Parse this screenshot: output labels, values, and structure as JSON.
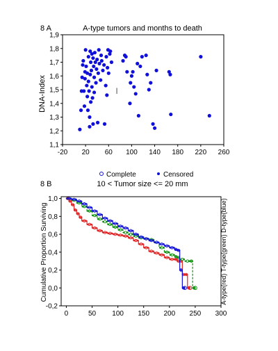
{
  "chart_data": [
    {
      "type": "scatter",
      "panel_label": "8 A",
      "title": "A-type tumors and months to death",
      "xlabel": "",
      "ylabel": "DNA-Index",
      "xlim": [
        -20,
        260
      ],
      "ylim": [
        1.1,
        1.9
      ],
      "x_ticks": [
        -20,
        20,
        60,
        100,
        140,
        180,
        220,
        260
      ],
      "y_ticks": [
        "1,1",
        "1,2",
        "1,3",
        "1,4",
        "1,5",
        "1,6",
        "1,7",
        "1,8",
        "1,9"
      ],
      "grid": false,
      "point_color": "#1010d8",
      "points": [
        [
          10,
          1.21
        ],
        [
          12,
          1.35
        ],
        [
          13,
          1.49
        ],
        [
          14,
          1.59
        ],
        [
          15,
          1.68
        ],
        [
          16,
          1.71
        ],
        [
          17,
          1.49
        ],
        [
          18,
          1.38
        ],
        [
          19,
          1.58
        ],
        [
          19,
          1.63
        ],
        [
          20,
          1.79
        ],
        [
          21,
          1.67
        ],
        [
          22,
          1.53
        ],
        [
          23,
          1.45
        ],
        [
          23,
          1.62
        ],
        [
          24,
          1.35
        ],
        [
          25,
          1.74
        ],
        [
          25,
          1.56
        ],
        [
          26,
          1.49
        ],
        [
          27,
          1.23
        ],
        [
          27,
          1.3
        ],
        [
          28,
          1.78
        ],
        [
          28,
          1.61
        ],
        [
          29,
          1.7
        ],
        [
          29,
          1.41
        ],
        [
          30,
          1.64
        ],
        [
          31,
          1.76
        ],
        [
          31,
          1.52
        ],
        [
          32,
          1.44
        ],
        [
          33,
          1.25
        ],
        [
          33,
          1.73
        ],
        [
          34,
          1.67
        ],
        [
          35,
          1.59
        ],
        [
          35,
          1.48
        ],
        [
          36,
          1.77
        ],
        [
          37,
          1.7
        ],
        [
          38,
          1.55
        ],
        [
          39,
          1.65
        ],
        [
          40,
          1.72
        ],
        [
          41,
          1.26
        ],
        [
          42,
          1.62
        ],
        [
          43,
          1.79
        ],
        [
          44,
          1.69
        ],
        [
          46,
          1.57
        ],
        [
          47,
          1.75
        ],
        [
          48,
          1.71
        ],
        [
          50,
          1.64
        ],
        [
          52,
          1.68
        ],
        [
          53,
          1.25
        ],
        [
          55,
          1.53
        ],
        [
          56,
          1.74
        ],
        [
          57,
          1.46
        ],
        [
          58,
          1.66
        ],
        [
          59,
          1.79
        ],
        [
          60,
          1.62
        ],
        [
          62,
          1.76
        ],
        [
          63,
          1.78
        ],
        [
          65,
          1.7
        ],
        [
          75,
          1.47
        ],
        [
          85,
          1.71
        ],
        [
          88,
          1.75
        ],
        [
          90,
          1.74
        ],
        [
          92,
          1.63
        ],
        [
          97,
          1.4
        ],
        [
          98,
          1.55
        ],
        [
          100,
          1.6
        ],
        [
          102,
          1.63
        ],
        [
          104,
          1.52
        ],
        [
          107,
          1.47
        ],
        [
          110,
          1.69
        ],
        [
          112,
          1.31
        ],
        [
          115,
          1.67
        ],
        [
          118,
          1.74
        ],
        [
          125,
          1.75
        ],
        [
          127,
          1.61
        ],
        [
          130,
          1.5
        ],
        [
          133,
          1.55
        ],
        [
          137,
          1.25
        ],
        [
          140,
          1.22
        ],
        [
          143,
          1.64
        ],
        [
          165,
          1.63
        ],
        [
          167,
          1.61
        ],
        [
          168,
          1.32
        ],
        [
          220,
          1.74
        ],
        [
          235,
          1.31
        ]
      ],
      "annotation": {
        "x": 75,
        "y": 1.47,
        "text": "|"
      }
    },
    {
      "type": "line",
      "panel_label": "8 B",
      "title": "10 < Tumor size <= 20 mm",
      "legend": {
        "position": "top",
        "entries": [
          "Complete",
          "Censored"
        ]
      },
      "xlabel": "",
      "ylabel": "Cumulative Proportion Surviving",
      "right_label": "A-type(red) T-type(green) D-type(blue)",
      "xlim": [
        -10,
        300
      ],
      "ylim": [
        -0.2,
        1.02
      ],
      "x_ticks": [
        0,
        50,
        100,
        150,
        200,
        250,
        300
      ],
      "y_ticks": [
        "-0,2",
        "0,0",
        "0,2",
        "0,4",
        "0,6",
        "0,8",
        "1,0"
      ],
      "grid": false,
      "series": [
        {
          "color": "#e02020",
          "x": [
            0,
            5,
            10,
            15,
            20,
            25,
            30,
            40,
            50,
            60,
            70,
            80,
            90,
            100,
            110,
            120,
            130,
            140,
            150,
            160,
            170,
            180,
            190,
            200,
            210,
            215,
            220,
            225,
            230,
            235,
            240
          ],
          "y": [
            1.0,
            0.97,
            0.93,
            0.87,
            0.83,
            0.79,
            0.75,
            0.71,
            0.67,
            0.64,
            0.62,
            0.61,
            0.6,
            0.59,
            0.58,
            0.56,
            0.53,
            0.49,
            0.45,
            0.41,
            0.39,
            0.37,
            0.34,
            0.32,
            0.32,
            0.3,
            0.3,
            0.15,
            0.15,
            0.0,
            0.0
          ]
        },
        {
          "color": "#109010",
          "x": [
            0,
            10,
            20,
            30,
            40,
            50,
            60,
            70,
            80,
            90,
            100,
            110,
            120,
            130,
            140,
            150,
            160,
            170,
            180,
            190,
            200,
            210,
            215,
            220,
            230,
            240,
            245,
            250
          ],
          "y": [
            1.0,
            0.98,
            0.95,
            0.91,
            0.86,
            0.81,
            0.77,
            0.74,
            0.71,
            0.68,
            0.65,
            0.62,
            0.6,
            0.58,
            0.56,
            0.55,
            0.54,
            0.51,
            0.45,
            0.4,
            0.37,
            0.35,
            0.34,
            0.32,
            0.3,
            0.3,
            0.0,
            0.0
          ]
        },
        {
          "color": "#1010d8",
          "x": [
            0,
            10,
            20,
            30,
            40,
            50,
            60,
            70,
            80,
            90,
            100,
            110,
            120,
            130,
            140,
            150,
            160,
            170,
            180,
            190,
            200,
            210,
            215,
            220,
            225,
            230
          ],
          "y": [
            1.0,
            0.99,
            0.97,
            0.94,
            0.9,
            0.86,
            0.82,
            0.78,
            0.75,
            0.72,
            0.69,
            0.67,
            0.64,
            0.6,
            0.57,
            0.55,
            0.53,
            0.51,
            0.49,
            0.47,
            0.45,
            0.43,
            0.42,
            0.2,
            0.0,
            0.0
          ]
        }
      ]
    }
  ]
}
